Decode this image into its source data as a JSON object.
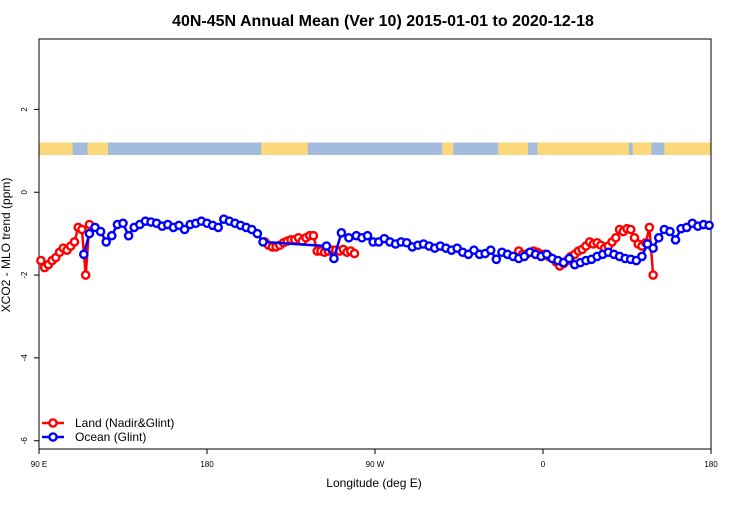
{
  "chart_data": {
    "type": "line",
    "title": "40N-45N Annual Mean (Ver 10)   2015-01-01 to 2020-12-18",
    "xlabel": "Longitude (deg E)",
    "ylabel": "XCO2 - MLO trend (ppm)",
    "xlim": [
      90,
      450
    ],
    "ylim": [
      -6.2,
      3.7
    ],
    "x_ticks": [
      {
        "value": 90,
        "label": "90 E"
      },
      {
        "value": 180,
        "label": "180"
      },
      {
        "value": 270,
        "label": "90 W"
      },
      {
        "value": 360,
        "label": "0"
      },
      {
        "value": 450,
        "label": "180"
      }
    ],
    "y_ticks": [
      {
        "value": -6,
        "label": "-6"
      },
      {
        "value": -4,
        "label": "-4"
      },
      {
        "value": -2,
        "label": "-2"
      },
      {
        "value": 0,
        "label": "0"
      },
      {
        "value": 2,
        "label": "2"
      }
    ],
    "grid": false,
    "legend_position": "bottom-left",
    "land_ocean_strip": {
      "y_range": [
        0.9,
        1.2
      ],
      "land_color": "#fdd87a",
      "ocean_color": "#a3bbdc",
      "land_spans": [
        [
          90,
          108
        ],
        [
          116,
          127
        ],
        [
          209,
          234
        ],
        [
          306,
          312
        ],
        [
          336,
          352
        ],
        [
          357,
          406
        ],
        [
          408,
          418
        ],
        [
          425,
          450
        ]
      ]
    },
    "series": [
      {
        "name": "Land (Nadir&Glint)",
        "color": "#ff0000",
        "x": [
          91,
          93,
          95,
          97,
          99,
          101,
          103,
          105,
          107,
          109,
          111,
          113,
          115,
          117,
          211,
          213,
          215,
          217,
          219,
          221,
          223,
          225,
          227,
          229,
          231,
          233,
          235,
          237,
          239,
          241,
          243,
          245,
          247,
          249,
          251,
          253,
          255,
          257,
          259,
          347,
          349,
          351,
          353,
          355,
          357,
          359,
          361,
          363,
          365,
          367,
          369,
          371,
          373,
          375,
          377,
          379,
          381,
          383,
          385,
          387,
          389,
          391,
          393,
          395,
          397,
          399,
          401,
          403,
          405,
          407,
          409,
          411,
          413,
          415,
          417,
          419
        ],
        "values": [
          -1.65,
          -1.82,
          -1.75,
          -1.65,
          -1.58,
          -1.45,
          -1.35,
          -1.4,
          -1.3,
          -1.2,
          -0.85,
          -0.9,
          -2.0,
          -0.78,
          -1.2,
          -1.28,
          -1.32,
          -1.32,
          -1.28,
          -1.22,
          -1.18,
          -1.15,
          -1.15,
          -1.1,
          -1.18,
          -1.1,
          -1.05,
          -1.05,
          -1.42,
          -1.42,
          -1.45,
          -1.42,
          -1.4,
          -1.4,
          -1.42,
          -1.38,
          -1.45,
          -1.42,
          -1.48,
          -1.42,
          -1.5,
          -1.5,
          -1.45,
          -1.42,
          -1.45,
          -1.5,
          -1.5,
          -1.55,
          -1.6,
          -1.68,
          -1.78,
          -1.72,
          -1.65,
          -1.55,
          -1.5,
          -1.42,
          -1.38,
          -1.3,
          -1.2,
          -1.25,
          -1.22,
          -1.28,
          -1.35,
          -1.3,
          -1.2,
          -1.1,
          -0.9,
          -0.95,
          -0.88,
          -0.9,
          -1.1,
          -1.25,
          -1.3,
          -1.22,
          -0.85,
          -2.0
        ],
        "segments": [
          [
            0,
            14
          ],
          [
            14,
            39
          ],
          [
            39,
            76
          ]
        ]
      },
      {
        "name": "Ocean (Glint)",
        "color": "#0000ff",
        "x": [
          114,
          117,
          120,
          123,
          126,
          129,
          132,
          135,
          138,
          141,
          144,
          147,
          150,
          153,
          156,
          159,
          162,
          165,
          168,
          171,
          174,
          177,
          180,
          183,
          186,
          189,
          192,
          195,
          198,
          201,
          204,
          207,
          210,
          244,
          248,
          252,
          256,
          260,
          263,
          266,
          269,
          272,
          275,
          278,
          281,
          284,
          287,
          290,
          293,
          296,
          299,
          302,
          305,
          308,
          311,
          314,
          317,
          320,
          323,
          326,
          329,
          332,
          335,
          338,
          341,
          344,
          347,
          350,
          353,
          356,
          359,
          362,
          365,
          368,
          371,
          374,
          377,
          380,
          383,
          386,
          389,
          392,
          395,
          398,
          401,
          404,
          407,
          410,
          413,
          416,
          419,
          422,
          425,
          428,
          431,
          434,
          437,
          440,
          443,
          446,
          449
        ],
        "values": [
          -1.5,
          -1.0,
          -0.85,
          -0.95,
          -1.2,
          -1.05,
          -0.78,
          -0.75,
          -1.05,
          -0.85,
          -0.78,
          -0.7,
          -0.72,
          -0.75,
          -0.82,
          -0.78,
          -0.85,
          -0.8,
          -0.9,
          -0.78,
          -0.75,
          -0.7,
          -0.75,
          -0.8,
          -0.85,
          -0.65,
          -0.7,
          -0.75,
          -0.8,
          -0.85,
          -0.9,
          -1.0,
          -1.2,
          -1.3,
          -1.6,
          -0.98,
          -1.1,
          -1.05,
          -1.1,
          -1.05,
          -1.2,
          -1.2,
          -1.12,
          -1.2,
          -1.25,
          -1.2,
          -1.22,
          -1.32,
          -1.28,
          -1.25,
          -1.3,
          -1.35,
          -1.3,
          -1.35,
          -1.4,
          -1.35,
          -1.45,
          -1.5,
          -1.4,
          -1.5,
          -1.48,
          -1.4,
          -1.62,
          -1.45,
          -1.5,
          -1.55,
          -1.6,
          -1.55,
          -1.45,
          -1.5,
          -1.55,
          -1.5,
          -1.6,
          -1.65,
          -1.7,
          -1.6,
          -1.75,
          -1.7,
          -1.65,
          -1.62,
          -1.55,
          -1.5,
          -1.45,
          -1.5,
          -1.55,
          -1.6,
          -1.62,
          -1.65,
          -1.55,
          -1.25,
          -1.35,
          -1.1,
          -0.9,
          -0.95,
          -1.15,
          -0.88,
          -0.85,
          -0.75,
          -0.82,
          -0.78,
          -0.8
        ],
        "overrides": {
          "x": [
            114,
            117,
            120,
            123,
            126,
            129,
            132,
            135,
            138,
            141,
            144,
            147,
            150,
            153,
            156,
            159,
            162,
            165,
            168,
            171,
            174,
            177,
            180,
            183,
            186,
            189,
            192,
            195,
            198,
            201,
            204,
            207,
            210,
            240,
            242,
            244,
            247,
            250,
            253,
            256,
            259,
            262,
            265,
            268,
            271,
            274,
            277,
            280,
            283,
            286,
            289,
            292,
            295,
            298,
            301,
            304,
            307,
            310,
            313,
            316,
            319,
            322,
            325,
            328,
            331,
            334,
            337,
            340,
            343,
            346,
            349,
            352,
            355,
            358,
            361,
            364,
            367,
            370,
            373,
            376,
            379,
            382,
            385,
            388,
            391,
            394,
            397,
            400,
            403,
            406,
            409,
            412,
            415,
            418,
            421,
            424,
            427,
            430,
            433,
            436,
            439
          ]
        }
      }
    ]
  }
}
